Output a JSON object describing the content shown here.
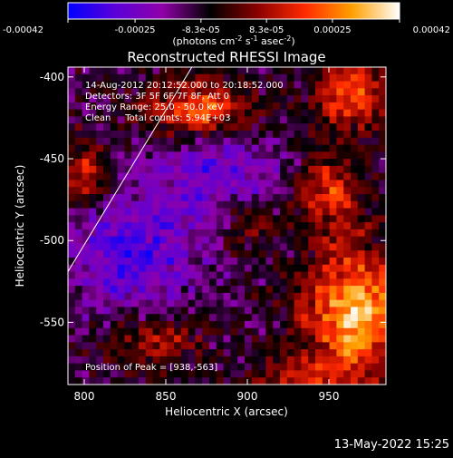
{
  "colorbar": {
    "tick_labels": [
      "-0.00042",
      "-0.00025",
      "-8.3e-05",
      "8.3e-05",
      "0.00025",
      "0.00042"
    ],
    "tick_values": [
      -0.00042,
      -0.00025,
      -8.3e-05,
      8.3e-05,
      0.00025,
      0.00042
    ],
    "range": [
      -0.00042,
      0.00042
    ],
    "unit_base": "(photons cm",
    "unit_exp1": "-2",
    "unit_mid": " s",
    "unit_exp2": "-1",
    "unit_mid2": " asec",
    "unit_exp3": "-2",
    "unit_end": ")",
    "colors": [
      "#0000ff",
      "#5b00d8",
      "#9000a8",
      "#000000",
      "#8a0000",
      "#ff2a00",
      "#ffa000",
      "#ffffff"
    ]
  },
  "chart_data": {
    "type": "heatmap",
    "title": "Reconstructed RHESSI Image",
    "xlabel": "Heliocentric X (arcsec)",
    "ylabel": "Heliocentric Y (arcsec)",
    "xlim": [
      790,
      985
    ],
    "ylim": [
      -588,
      -394
    ],
    "xticks": [
      800,
      850,
      900,
      950
    ],
    "yticks": [
      -400,
      -450,
      -500,
      -550
    ],
    "xtick_labels": [
      "800",
      "850",
      "900",
      "950"
    ],
    "ytick_labels": [
      "-400",
      "-450",
      "-500",
      "-550"
    ],
    "annotations": {
      "line1": "14-Aug-2012 20:12:52.000 to 20:18:52.000",
      "line2": "Detectors: 3F 5F 6F 7F 8F, Att 0",
      "line3": "Energy Range: 25.0 - 50.0 keV",
      "line4": "Clean     Total counts: 5.94E+03",
      "peak": "Position of Peak = [938,-563]"
    },
    "peak": {
      "x": 938,
      "y": -563
    },
    "limb_line": [
      [
        790,
        -519
      ],
      [
        866,
        -394
      ]
    ],
    "sources": [
      {
        "x": 966,
        "y": -545,
        "sx": 22,
        "sy": 28,
        "amp": 0.00042
      },
      {
        "x": 950,
        "y": -470,
        "sx": 14,
        "sy": 16,
        "amp": 0.00026
      },
      {
        "x": 965,
        "y": -410,
        "sx": 16,
        "sy": 14,
        "amp": 0.0003
      },
      {
        "x": 870,
        "y": -420,
        "sx": 22,
        "sy": 12,
        "amp": 0.0003
      },
      {
        "x": 800,
        "y": -460,
        "sx": 10,
        "sy": 14,
        "amp": 0.00022
      },
      {
        "x": 845,
        "y": -560,
        "sx": 18,
        "sy": 10,
        "amp": 0.0002
      },
      {
        "x": 900,
        "y": -490,
        "sx": 12,
        "sy": 10,
        "amp": 0.00016
      },
      {
        "x": 930,
        "y": -585,
        "sx": 18,
        "sy": 8,
        "amp": 0.00018
      },
      {
        "x": 880,
        "y": -460,
        "sx": 30,
        "sy": 20,
        "amp": -0.00018
      },
      {
        "x": 830,
        "y": -510,
        "sx": 30,
        "sy": 25,
        "amp": -0.00022
      }
    ]
  },
  "footer": {
    "timestamp": "13-May-2022 15:25"
  }
}
